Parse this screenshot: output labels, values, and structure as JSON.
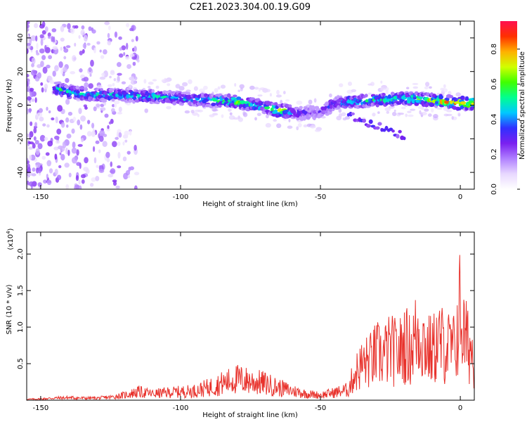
{
  "title": "C2E1.2023.304.00.19.G09",
  "chart_data": [
    {
      "type": "heatmap",
      "xlabel": "Height of straight line (km)",
      "ylabel": "Frequency (Hz)",
      "xlim": [
        -155,
        5
      ],
      "ylim": [
        -50,
        50
      ],
      "x_ticks": [
        -150,
        -100,
        -50,
        0
      ],
      "y_ticks": [
        -40,
        -20,
        0,
        20,
        40
      ],
      "colorbar": {
        "label": "Normalized spectral amplitude",
        "range": [
          0.0,
          0.96
        ],
        "ticks": [
          "0.0",
          "0.2",
          "0.4",
          "0.6",
          "0.8"
        ],
        "colormap": [
          "#ffffff",
          "#e8d8ff",
          "#b080ff",
          "#7a20f0",
          "#3030ff",
          "#00c8ff",
          "#00ff90",
          "#40ff00",
          "#d0ff00",
          "#ffb000",
          "#ff3000",
          "#ff1050"
        ]
      },
      "ridge": {
        "x": [
          -145,
          -140,
          -130,
          -120,
          -110,
          -100,
          -90,
          -80,
          -70,
          -65,
          -60,
          -55,
          -50,
          -45,
          -40,
          -30,
          -20,
          -10,
          -5,
          0,
          5
        ],
        "frequency_hz": [
          10,
          8,
          6,
          6,
          5,
          4,
          3,
          2,
          -1,
          -3,
          -4,
          -5,
          -4,
          1,
          2,
          3,
          4,
          3,
          2,
          1,
          1
        ],
        "peak_amplitude": [
          0.55,
          0.6,
          0.55,
          0.55,
          0.55,
          0.5,
          0.55,
          0.7,
          0.5,
          0.85,
          0.5,
          0.35,
          0.3,
          0.45,
          0.6,
          0.6,
          0.65,
          0.75,
          0.85,
          0.9,
          0.85
        ]
      }
    },
    {
      "type": "line",
      "xlabel": "Height of straight line (km)",
      "ylabel": "SNR (10 * v/v)",
      "scale_note": "(x10",
      "scale_exponent": "4",
      "xlim": [
        -155,
        5
      ],
      "ylim": [
        0,
        2.3
      ],
      "x_ticks": [
        -150,
        -100,
        -50,
        0
      ],
      "y_ticks": [
        0.5,
        1.0,
        1.5,
        2.0
      ],
      "series": [
        {
          "color": "#e8322c",
          "x": [
            -155,
            -150,
            -145,
            -140,
            -135,
            -130,
            -125,
            -120,
            -115,
            -110,
            -105,
            -100,
            -95,
            -90,
            -85,
            -80,
            -75,
            -70,
            -65,
            -60,
            -55,
            -50,
            -45,
            -40,
            -38,
            -35,
            -32,
            -30,
            -28,
            -25,
            -22,
            -20,
            -18,
            -15,
            -12,
            -10,
            -8,
            -6,
            -4,
            -2,
            0,
            1,
            2,
            4,
            5
          ],
          "y": [
            0.02,
            0.03,
            0.05,
            0.06,
            0.05,
            0.05,
            0.07,
            0.12,
            0.2,
            0.15,
            0.18,
            0.2,
            0.22,
            0.3,
            0.4,
            0.5,
            0.45,
            0.4,
            0.3,
            0.22,
            0.15,
            0.12,
            0.18,
            0.25,
            0.6,
            0.85,
            0.95,
            1.1,
            1.05,
            1.2,
            1.1,
            1.35,
            1.2,
            1.65,
            1.25,
            1.15,
            1.4,
            1.3,
            1.25,
            1.2,
            2.2,
            1.6,
            1.4,
            1.2,
            1.0
          ]
        }
      ]
    }
  ]
}
